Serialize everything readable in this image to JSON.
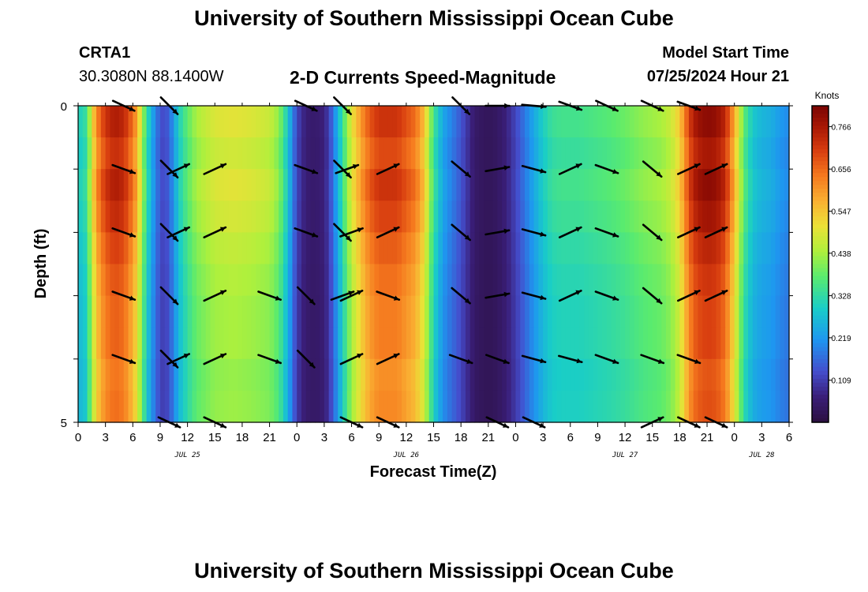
{
  "page": {
    "title": "University of Southern Mississippi Ocean Cube",
    "title_repeat": "University of Southern Mississippi Ocean Cube"
  },
  "station": {
    "id": "CRTA1",
    "coords": "30.3080N  88.1400W"
  },
  "model_start": {
    "label": "Model Start Time",
    "value": "07/25/2024 Hour 21"
  },
  "chart_data": {
    "type": "heatmap",
    "title": "2-D Currents Speed-Magnitude",
    "xlabel": "Forecast Time(Z)",
    "ylabel": "Depth (ft)",
    "x_unit": "hours since 2024-07-25 00Z",
    "xlim": [
      0,
      78
    ],
    "ylim": [
      0,
      5
    ],
    "x_ticks": [
      0,
      3,
      6,
      9,
      12,
      15,
      18,
      21,
      24,
      27,
      30,
      33,
      36,
      39,
      42,
      45,
      48,
      51,
      54,
      57,
      60,
      63,
      66,
      69,
      72,
      75,
      78
    ],
    "x_tick_labels": [
      "0",
      "3",
      "6",
      "9",
      "12",
      "15",
      "18",
      "21",
      "0",
      "3",
      "6",
      "9",
      "12",
      "15",
      "18",
      "21",
      "0",
      "3",
      "6",
      "9",
      "12",
      "15",
      "18",
      "21",
      "0",
      "3",
      "6"
    ],
    "y_tick_labels": [
      "0",
      "5"
    ],
    "date_labels": [
      {
        "text": "JUL 25",
        "hour": 12
      },
      {
        "text": "JUL 26",
        "hour": 36
      },
      {
        "text": "JUL 27",
        "hour": 60
      },
      {
        "text": "JUL 28",
        "hour": 75
      }
    ],
    "colorbar": {
      "unit": "Knots",
      "min": 0.0,
      "max": 0.82,
      "tick_labels": [
        "0.766",
        "0.656",
        "0.547",
        "0.438",
        "0.328",
        "0.219",
        "0.109"
      ],
      "tick_values": [
        0.766,
        0.656,
        0.547,
        0.438,
        0.328,
        0.219,
        0.109
      ]
    },
    "speed_profile": {
      "hours": [
        0,
        0.5,
        1,
        1.5,
        2,
        3,
        4,
        5,
        6,
        6.5,
        7,
        7.5,
        8,
        8.5,
        9,
        9.5,
        10,
        10.5,
        11,
        12,
        13,
        15,
        17,
        19,
        21,
        22,
        22.5,
        23,
        23.5,
        24,
        25,
        26,
        27,
        27.5,
        28,
        28.5,
        29,
        29.5,
        30,
        31,
        32,
        33,
        35,
        37,
        38,
        38.5,
        39,
        40,
        42,
        43,
        43.5,
        44,
        45,
        46,
        47,
        48,
        49,
        50,
        51,
        52,
        53,
        55,
        58,
        60,
        62,
        64,
        65,
        66,
        66.5,
        67,
        67.5,
        68,
        69,
        70,
        71,
        71.5,
        72,
        72.5,
        73,
        74,
        75,
        76,
        77,
        78
      ],
      "knots": [
        0.32,
        0.3,
        0.36,
        0.5,
        0.62,
        0.72,
        0.76,
        0.74,
        0.65,
        0.58,
        0.45,
        0.34,
        0.26,
        0.19,
        0.14,
        0.12,
        0.16,
        0.22,
        0.3,
        0.38,
        0.44,
        0.49,
        0.5,
        0.49,
        0.47,
        0.42,
        0.36,
        0.29,
        0.2,
        0.12,
        0.06,
        0.05,
        0.07,
        0.11,
        0.18,
        0.26,
        0.34,
        0.42,
        0.5,
        0.6,
        0.68,
        0.72,
        0.72,
        0.65,
        0.55,
        0.45,
        0.35,
        0.24,
        0.14,
        0.08,
        0.05,
        0.04,
        0.03,
        0.04,
        0.07,
        0.12,
        0.18,
        0.24,
        0.3,
        0.34,
        0.35,
        0.35,
        0.37,
        0.39,
        0.42,
        0.44,
        0.47,
        0.54,
        0.62,
        0.7,
        0.75,
        0.78,
        0.8,
        0.79,
        0.74,
        0.66,
        0.58,
        0.49,
        0.38,
        0.29,
        0.26,
        0.25,
        0.22,
        0.2
      ],
      "depth_factors": [
        1.0,
        0.96,
        1.0,
        0.97,
        0.93,
        0.9,
        0.88,
        0.88,
        0.85,
        0.86
      ]
    },
    "vector_rows": [
      {
        "depth": 0.0,
        "hours": [
          5,
          10,
          25,
          29,
          42,
          46,
          50,
          54,
          58,
          63,
          67
        ],
        "angles": [
          25,
          45,
          25,
          45,
          45,
          0,
          5,
          20,
          25,
          25,
          20
        ]
      },
      {
        "depth": 1.0,
        "hours": [
          5,
          10,
          11,
          15,
          25,
          29,
          29.5,
          34,
          42,
          46,
          50,
          54,
          58,
          63,
          67,
          70
        ],
        "angles": [
          20,
          45,
          -25,
          -25,
          20,
          45,
          -20,
          -25,
          40,
          -10,
          15,
          -25,
          20,
          40,
          -25,
          -25
        ]
      },
      {
        "depth": 2.0,
        "hours": [
          5,
          10,
          11,
          15,
          25,
          29,
          30,
          34,
          42,
          46,
          50,
          54,
          58,
          63,
          67,
          70
        ],
        "angles": [
          20,
          45,
          -25,
          -25,
          20,
          45,
          -20,
          -25,
          40,
          -10,
          15,
          -25,
          20,
          40,
          -25,
          -25
        ]
      },
      {
        "depth": 3.0,
        "hours": [
          5,
          10,
          15,
          21,
          25,
          29,
          30,
          34,
          42,
          46,
          50,
          54,
          58,
          63,
          67,
          70
        ],
        "angles": [
          20,
          45,
          -25,
          20,
          45,
          -20,
          -25,
          20,
          40,
          -10,
          15,
          -25,
          20,
          40,
          -25,
          -25
        ]
      },
      {
        "depth": 4.0,
        "hours": [
          5,
          10,
          11,
          15,
          21,
          25,
          30,
          34,
          42,
          46,
          50,
          54,
          58,
          63,
          67
        ],
        "angles": [
          20,
          45,
          -25,
          -25,
          20,
          45,
          -25,
          -25,
          20,
          20,
          15,
          15,
          20,
          20,
          20
        ]
      },
      {
        "depth": 5.0,
        "hours": [
          10,
          15,
          30,
          34,
          46,
          50,
          63,
          67,
          70
        ],
        "angles": [
          25,
          25,
          25,
          25,
          25,
          25,
          -25,
          25,
          25
        ]
      }
    ]
  }
}
